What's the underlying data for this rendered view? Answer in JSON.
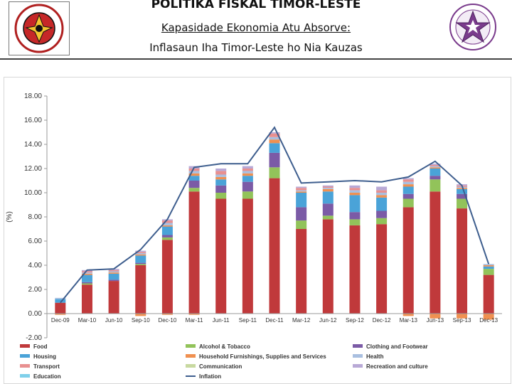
{
  "header": {
    "title": "POLITIKA FISKAL TIMOR-LESTE",
    "subtitle_line1": "Kapasidade Ekonomia Atu Absorve:",
    "subtitle_line2": "Inflasaun Iha Timor-Leste ho Nia Kauzas",
    "left_logo": "ministry-seal",
    "right_logo": "star-seal"
  },
  "chart_data": {
    "type": "bar",
    "stacked": true,
    "title": "",
    "xlabel": "",
    "ylabel": "(%)",
    "ylim": [
      -2,
      18
    ],
    "yticks": [
      "-2.00",
      "0.00",
      "2.00",
      "4.00",
      "6.00",
      "8.00",
      "10.00",
      "12.00",
      "14.00",
      "16.00",
      "18.00"
    ],
    "grid": false,
    "legend_position": "bottom",
    "categories": [
      "Dec-09",
      "Mar-10",
      "Jun-10",
      "Sep-10",
      "Dec-10",
      "Mar-11",
      "Jun-11",
      "Sep-11",
      "Dec-11",
      "Mar-12",
      "Jun-12",
      "Sep-12",
      "Dec-12",
      "Mar-13",
      "Jun-13",
      "Sep-13",
      "Dec-13"
    ],
    "series": [
      {
        "name": "Food",
        "color": "#c0393b",
        "values": [
          0.9,
          2.4,
          2.7,
          4.0,
          6.1,
          10.1,
          9.5,
          9.5,
          11.2,
          7.0,
          7.8,
          7.3,
          7.4,
          8.8,
          10.1,
          8.7,
          3.2
        ]
      },
      {
        "name": "Alcohol & Tobacco",
        "color": "#92c35a",
        "values": [
          0.0,
          0.1,
          0.0,
          0.1,
          0.2,
          0.3,
          0.5,
          0.6,
          0.9,
          0.7,
          0.3,
          0.5,
          0.5,
          0.7,
          1.0,
          0.8,
          0.5
        ]
      },
      {
        "name": "Clothing and Footwear",
        "color": "#7b5ba6",
        "values": [
          0.0,
          0.1,
          0.1,
          0.1,
          0.2,
          0.6,
          0.6,
          0.8,
          1.2,
          1.1,
          1.0,
          0.6,
          0.6,
          0.4,
          0.3,
          0.4,
          0.0
        ]
      },
      {
        "name": "Housing",
        "color": "#4aa3d8",
        "values": [
          0.3,
          0.6,
          0.5,
          0.6,
          0.7,
          0.4,
          0.5,
          0.5,
          0.8,
          1.2,
          1.0,
          1.4,
          1.1,
          0.6,
          0.6,
          0.4,
          0.2
        ]
      },
      {
        "name": "Household Furnishings, Supplies and Services",
        "color": "#f09050",
        "values": [
          0.0,
          0.1,
          0.1,
          0.1,
          0.1,
          0.2,
          0.2,
          0.2,
          0.3,
          0.1,
          0.2,
          0.2,
          0.2,
          0.2,
          0.1,
          0.1,
          0.1
        ]
      },
      {
        "name": "Health",
        "color": "#a9bfe0",
        "values": [
          0.1,
          0.1,
          0.1,
          0.1,
          0.2,
          0.2,
          0.2,
          0.2,
          0.2,
          0.1,
          0.1,
          0.2,
          0.2,
          0.2,
          0.1,
          0.1,
          0.1
        ]
      },
      {
        "name": "Transport",
        "color": "#e89090",
        "values": [
          0.0,
          0.1,
          0.1,
          0.1,
          0.2,
          0.2,
          0.3,
          0.2,
          0.3,
          0.2,
          0.1,
          0.2,
          0.2,
          0.2,
          0.1,
          0.1,
          0.0
        ]
      },
      {
        "name": "Communication",
        "color": "#c8d9a0",
        "values": [
          0.0,
          0.0,
          0.0,
          0.0,
          0.0,
          0.0,
          0.0,
          0.0,
          0.0,
          0.0,
          0.0,
          0.0,
          0.0,
          0.0,
          0.0,
          0.0,
          0.0
        ]
      },
      {
        "name": "Recreation and culture",
        "color": "#b8a9d6",
        "values": [
          0.0,
          0.1,
          0.1,
          0.1,
          0.1,
          0.2,
          0.2,
          0.2,
          0.1,
          0.1,
          0.1,
          0.2,
          0.3,
          0.1,
          0.1,
          0.1,
          0.0
        ]
      },
      {
        "name": "Education",
        "color": "#7fd0ea",
        "values": [
          0.0,
          0.0,
          0.0,
          0.0,
          0.0,
          0.0,
          0.0,
          0.0,
          0.0,
          0.0,
          0.0,
          0.0,
          0.0,
          0.0,
          0.0,
          0.0,
          0.0
        ]
      }
    ],
    "negative_values": [
      {
        "name": "Household Furnishings, Supplies and Services",
        "values": [
          -0.1,
          0,
          0,
          -0.2,
          -0.1,
          -0.1,
          0,
          0,
          0,
          0,
          0,
          0,
          0,
          -0.2,
          -0.4,
          -0.4,
          -0.5
        ]
      }
    ],
    "line": {
      "name": "Inflation",
      "color": "#3e5e8e",
      "values": [
        0.9,
        3.6,
        3.7,
        5.3,
        7.8,
        12.1,
        12.4,
        12.4,
        15.4,
        10.8,
        10.9,
        11.0,
        10.9,
        11.3,
        12.6,
        10.6,
        4.1
      ]
    }
  }
}
